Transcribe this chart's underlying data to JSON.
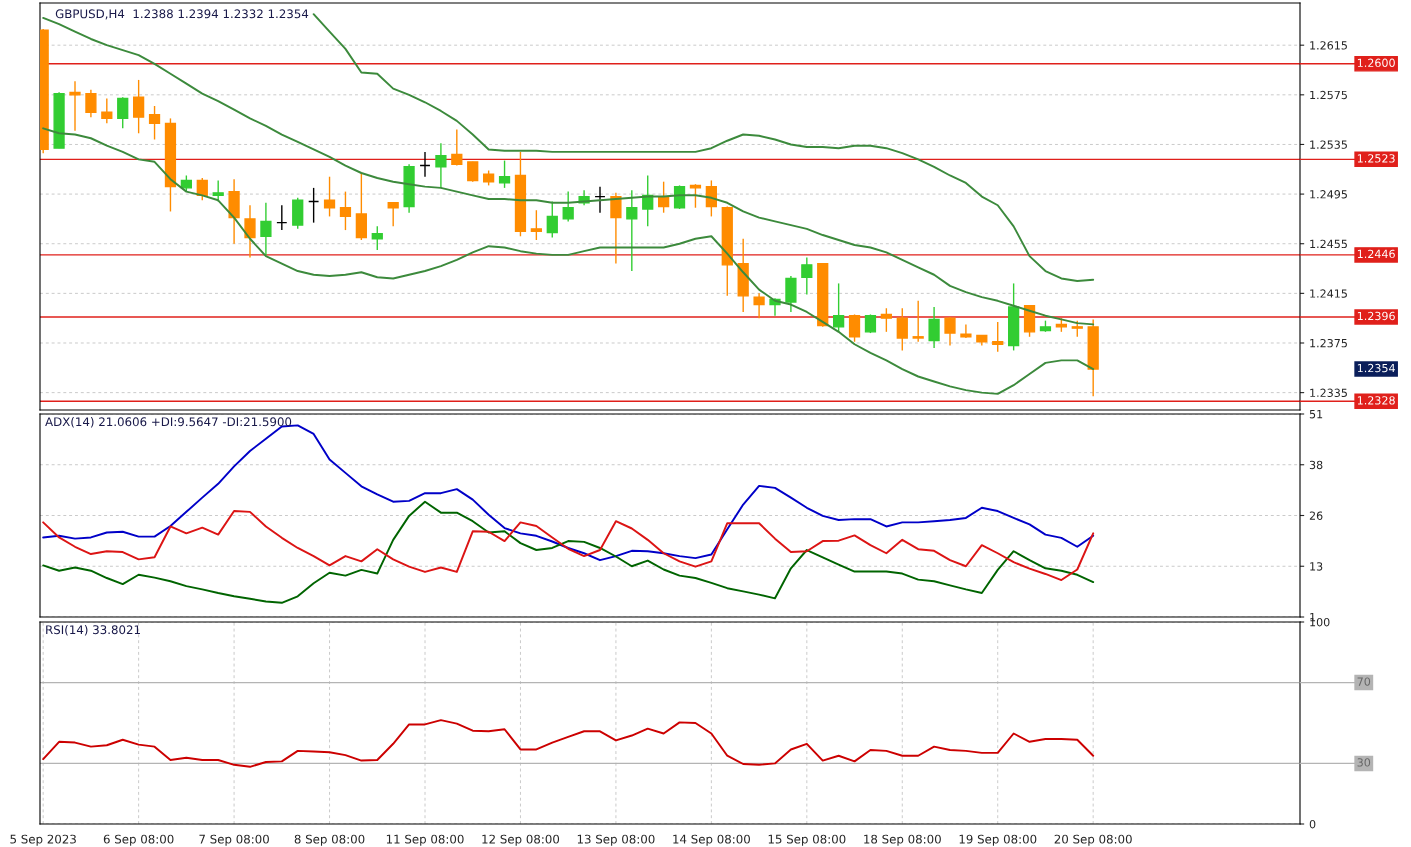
{
  "chart_data": [
    {
      "type": "candlestick",
      "title": "GBPUSD,H4  1.2388 1.2394 1.2332 1.2354",
      "categories": [
        null,
        null,
        null,
        null,
        null,
        null,
        null,
        null,
        null,
        null,
        null,
        null,
        null,
        null,
        null,
        null,
        null,
        null,
        null,
        null,
        null,
        null,
        null,
        null,
        null,
        null,
        null,
        null,
        null,
        null,
        null,
        null,
        null,
        null,
        null,
        null,
        null,
        null,
        null,
        null,
        null,
        null,
        null,
        null,
        null,
        null,
        null,
        null,
        null,
        null,
        null,
        null,
        null,
        null,
        null,
        null,
        null,
        null,
        null,
        null,
        null,
        null,
        null,
        null,
        null,
        null,
        null
      ],
      "ohlc": [
        [
          1.2627,
          1.2628,
          1.2528,
          1.2531
        ],
        [
          1.2532,
          1.2577,
          1.2532,
          1.2576
        ],
        [
          1.2577,
          1.2586,
          1.2546,
          1.2575
        ],
        [
          1.2576,
          1.2579,
          1.2557,
          1.2561
        ],
        [
          1.2561,
          1.2572,
          1.2552,
          1.2556
        ],
        [
          1.2556,
          1.2573,
          1.2548,
          1.2572
        ],
        [
          1.2573,
          1.2587,
          1.2544,
          1.2557
        ],
        [
          1.2559,
          1.2566,
          1.2539,
          1.2552
        ],
        [
          1.2552,
          1.2556,
          1.2481,
          1.2501
        ],
        [
          1.25,
          1.251,
          1.2497,
          1.2506
        ],
        [
          1.2506,
          1.2508,
          1.249,
          1.2494
        ],
        [
          1.2494,
          1.2506,
          1.2489,
          1.2496
        ],
        [
          1.2497,
          1.2507,
          1.2455,
          1.2476
        ],
        [
          1.2475,
          1.2486,
          1.2444,
          1.246
        ],
        [
          1.2461,
          1.2488,
          1.2446,
          1.2473
        ],
        [
          1.2472,
          1.2486,
          1.2466,
          1.2472
        ],
        [
          1.247,
          1.2492,
          1.2467,
          1.249
        ],
        [
          1.2489,
          1.25,
          1.2472,
          1.2489
        ],
        [
          1.249,
          1.2509,
          1.2477,
          1.2484
        ],
        [
          1.2484,
          1.2497,
          1.2466,
          1.2477
        ],
        [
          1.2479,
          1.2512,
          1.2458,
          1.246
        ],
        [
          1.2459,
          1.2469,
          1.245,
          1.2463
        ],
        [
          1.2488,
          1.2488,
          1.2469,
          1.2484
        ],
        [
          1.2485,
          1.2519,
          1.248,
          1.2517
        ],
        [
          1.2518,
          1.2529,
          1.2509,
          1.2518
        ],
        [
          1.2517,
          1.2536,
          1.25,
          1.2526
        ],
        [
          1.2527,
          1.2547,
          1.2518,
          1.2519
        ],
        [
          1.2521,
          1.2521,
          1.2505,
          1.2506
        ],
        [
          1.2511,
          1.2514,
          1.2502,
          1.2505
        ],
        [
          1.2504,
          1.2522,
          1.25,
          1.2509
        ],
        [
          1.251,
          1.2529,
          1.2461,
          1.2465
        ],
        [
          1.2467,
          1.2482,
          1.2458,
          1.2465
        ],
        [
          1.2464,
          1.2489,
          1.246,
          1.2477
        ],
        [
          1.2475,
          1.2497,
          1.2473,
          1.2484
        ],
        [
          1.2488,
          1.2498,
          1.2486,
          1.2493
        ],
        [
          1.2493,
          1.2501,
          1.248,
          1.2493
        ],
        [
          1.2493,
          1.2496,
          1.2439,
          1.2476
        ],
        [
          1.2475,
          1.2498,
          1.2433,
          1.2484
        ],
        [
          1.2483,
          1.251,
          1.2469,
          1.2494
        ],
        [
          1.2493,
          1.2505,
          1.248,
          1.2485
        ],
        [
          1.2484,
          1.2502,
          1.2483,
          1.2501
        ],
        [
          1.2502,
          1.2503,
          1.2484,
          1.25
        ],
        [
          1.2501,
          1.2506,
          1.2477,
          1.2485
        ],
        [
          1.2484,
          1.2485,
          1.2413,
          1.2438
        ],
        [
          1.2439,
          1.2459,
          1.24,
          1.2413
        ],
        [
          1.2412,
          1.2415,
          1.2395,
          1.2406
        ],
        [
          1.2406,
          1.2411,
          1.2397,
          1.241
        ],
        [
          1.2408,
          1.2429,
          1.24,
          1.2427
        ],
        [
          1.2428,
          1.2444,
          1.2414,
          1.2438
        ],
        [
          1.2439,
          1.2439,
          1.2388,
          1.2389
        ],
        [
          1.2388,
          1.2423,
          1.2384,
          1.2397
        ],
        [
          1.2397,
          1.2398,
          1.2376,
          1.238
        ],
        [
          1.2384,
          1.2398,
          1.2383,
          1.2397
        ],
        [
          1.2398,
          1.2403,
          1.2384,
          1.2395
        ],
        [
          1.2395,
          1.2403,
          1.2369,
          1.2379
        ],
        [
          1.238,
          1.2409,
          1.2376,
          1.2379
        ],
        [
          1.2377,
          1.2404,
          1.2371,
          1.2394
        ],
        [
          1.2395,
          1.2396,
          1.2373,
          1.2383
        ],
        [
          1.2382,
          1.239,
          1.2379,
          1.238
        ],
        [
          1.2381,
          1.2381,
          1.2373,
          1.2376
        ],
        [
          1.2376,
          1.2392,
          1.2368,
          1.2374
        ],
        [
          1.2373,
          1.2423,
          1.2369,
          1.2404
        ],
        [
          1.2405,
          1.2405,
          1.238,
          1.2384
        ],
        [
          1.2385,
          1.2393,
          1.2384,
          1.2388
        ],
        [
          1.239,
          1.2395,
          1.2384,
          1.2388
        ],
        [
          1.2388,
          1.2393,
          1.238,
          1.2387
        ],
        [
          1.2388,
          1.2394,
          1.2332,
          1.2354
        ]
      ],
      "colors": [
        "#ff8c00",
        "#32cd32",
        "#ff8c00",
        "#ff8c00",
        "#ff8c00",
        "#32cd32",
        "#ff8c00",
        "#ff8c00",
        "#ff8c00",
        "#32cd32",
        "#ff8c00",
        "#32cd32",
        "#ff8c00",
        "#ff8c00",
        "#32cd32",
        "#000000",
        "#32cd32",
        "#000000",
        "#ff8c00",
        "#ff8c00",
        "#ff8c00",
        "#32cd32",
        "#ff8c00",
        "#32cd32",
        "#000000",
        "#32cd32",
        "#ff8c00",
        "#ff8c00",
        "#ff8c00",
        "#32cd32",
        "#ff8c00",
        "#ff8c00",
        "#32cd32",
        "#32cd32",
        "#32cd32",
        "#000000",
        "#ff8c00",
        "#32cd32",
        "#32cd32",
        "#ff8c00",
        "#32cd32",
        "#ff8c00",
        "#ff8c00",
        "#ff8c00",
        "#ff8c00",
        "#ff8c00",
        "#32cd32",
        "#32cd32",
        "#32cd32",
        "#ff8c00",
        "#32cd32",
        "#ff8c00",
        "#32cd32",
        "#ff8c00",
        "#ff8c00",
        "#ff8c00",
        "#32cd32",
        "#ff8c00",
        "#ff8c00",
        "#ff8c00",
        "#ff8c00",
        "#32cd32",
        "#ff8c00",
        "#32cd32",
        "#ff8c00",
        "#ff8c00",
        "#ff8c00"
      ],
      "series": [
        {
          "type": "line",
          "color": "#3c8a3c",
          "values": [
            null,
            null,
            null,
            null,
            null,
            null,
            null,
            null,
            null,
            null,
            null,
            null,
            null,
            null,
            null,
            null,
            null,
            1.264,
            1.2626,
            1.2612,
            1.2593,
            1.2592,
            1.258,
            1.2575,
            1.2569,
            1.2562,
            1.2554,
            1.2543,
            1.2531,
            1.253,
            1.253,
            1.253,
            1.2529,
            1.2529,
            1.2529,
            1.2529,
            1.2529,
            1.2529,
            1.2529,
            1.2529,
            1.2529,
            1.2529,
            1.2532,
            1.2538,
            1.2543,
            1.2542,
            1.2539,
            1.2535,
            1.2533,
            1.2533,
            1.2532,
            1.2534,
            1.2534,
            1.2532,
            1.2528,
            1.2523,
            1.2517,
            1.251,
            1.2504,
            1.2493,
            1.2486,
            1.2469,
            1.2445,
            1.2433,
            1.2427,
            1.2425,
            1.2426
          ]
        },
        {
          "type": "line",
          "color": "#3c8a3c",
          "values": [
            1.2637,
            1.2632,
            1.2626,
            1.262,
            1.2615,
            1.2611,
            1.2607,
            1.26,
            1.2592,
            1.2584,
            1.2576,
            1.257,
            1.2563,
            1.2556,
            1.255,
            1.2543,
            1.2537,
            1.2531,
            1.2525,
            1.2518,
            1.2512,
            1.2508,
            1.2505,
            1.2503,
            1.2501,
            1.25,
            1.2497,
            1.2494,
            1.2491,
            1.2491,
            1.249,
            1.249,
            1.2488,
            1.2488,
            1.2489,
            1.249,
            1.2491,
            1.2492,
            1.2493,
            1.2493,
            1.2494,
            1.2494,
            1.2492,
            1.2488,
            1.2481,
            1.2476,
            1.2473,
            1.247,
            1.2467,
            1.2462,
            1.2458,
            1.2454,
            1.2452,
            1.2448,
            1.2442,
            1.2436,
            1.243,
            1.2421,
            1.2416,
            1.2412,
            1.2409,
            1.2405,
            1.2401,
            1.2397,
            1.2394,
            1.2391,
            1.239
          ]
        },
        {
          "type": "line",
          "color": "#3c8a3c",
          "values": [
            1.2548,
            1.2544,
            1.2543,
            1.254,
            1.2534,
            1.2529,
            1.2523,
            1.2521,
            1.2507,
            1.2497,
            1.2494,
            1.249,
            1.2476,
            1.2459,
            1.2445,
            1.2439,
            1.2433,
            1.243,
            1.2429,
            1.243,
            1.2432,
            1.2428,
            1.2427,
            1.243,
            1.2433,
            1.2437,
            1.2442,
            1.2448,
            1.2453,
            1.2452,
            1.2449,
            1.2447,
            1.2446,
            1.2446,
            1.2449,
            1.2452,
            1.2452,
            1.2452,
            1.2452,
            1.2452,
            1.2455,
            1.2459,
            1.2461,
            1.2447,
            1.2432,
            1.2418,
            1.2409,
            1.2406,
            1.24,
            1.2392,
            1.2384,
            1.2374,
            1.2367,
            1.2361,
            1.2354,
            1.2348,
            1.2344,
            1.234,
            1.2337,
            1.2335,
            1.2334,
            1.2341,
            1.235,
            1.2359,
            1.2361,
            1.2361,
            1.2354
          ]
        }
      ],
      "ylim": [
        1.2321,
        1.2649
      ],
      "yticks": [
        1.2335,
        1.2375,
        1.2415,
        1.2455,
        1.2495,
        1.2535,
        1.2575,
        1.2615
      ],
      "grid": true,
      "tick_labels": "y",
      "ref_lines": [
        {
          "axis": "y",
          "value": 1.26,
          "label": "1.2600",
          "color": "#e0201b"
        },
        {
          "axis": "y",
          "value": 1.2523,
          "label": "1.2523",
          "color": "#e0201b"
        },
        {
          "axis": "y",
          "value": 1.2446,
          "label": "1.2446",
          "color": "#e0201b"
        },
        {
          "axis": "y",
          "value": 1.2396,
          "label": "1.2396",
          "color": "#e0201b"
        },
        {
          "axis": "y",
          "value": 1.2328,
          "label": "1.2328",
          "color": "#e0201b"
        }
      ],
      "annotations": [
        "1.2354"
      ]
    },
    {
      "type": "line",
      "title": "ADX(14) 21.0606 +DI:9.5647 -DI:21.5900",
      "categories": [
        null,
        null,
        null,
        null,
        null,
        null,
        null,
        null,
        null,
        null,
        null,
        null,
        null,
        null,
        null,
        null,
        null,
        null,
        null,
        null,
        null,
        null,
        null,
        null,
        null,
        null,
        null,
        null,
        null,
        null,
        null,
        null,
        null,
        null,
        null,
        null,
        null,
        null,
        null,
        null,
        null,
        null,
        null,
        null,
        null,
        null,
        null,
        null,
        null,
        null,
        null,
        null,
        null,
        null,
        null,
        null,
        null,
        null,
        null,
        null,
        null,
        null,
        null,
        null,
        null,
        null,
        null
      ],
      "series": [
        {
          "color": "#0000c8",
          "values": [
            20.6,
            21.0,
            20.3,
            20.6,
            21.8,
            22.0,
            20.8,
            20.8,
            23.4,
            26.9,
            30.4,
            33.8,
            38.1,
            41.9,
            44.9,
            47.9,
            48.2,
            46.1,
            39.8,
            36.5,
            33.2,
            31.2,
            29.4,
            29.6,
            31.5,
            31.5,
            32.5,
            29.9,
            26.2,
            22.9,
            21.6,
            21.0,
            19.6,
            18.0,
            16.7,
            15.0,
            16.0,
            17.3,
            17.2,
            16.7,
            16.0,
            15.5,
            16.4,
            22.6,
            28.7,
            33.3,
            32.8,
            30.4,
            27.9,
            25.9,
            24.9,
            25.1,
            25.1,
            23.3,
            24.3,
            24.3,
            24.6,
            24.9,
            25.4,
            27.9,
            27.1,
            25.4,
            23.8,
            21.3,
            20.5,
            18.3,
            21.0
          ]
        },
        {
          "color": "#006400",
          "values": [
            13.7,
            12.4,
            13.2,
            12.4,
            10.6,
            9.1,
            11.4,
            10.7,
            9.8,
            8.6,
            7.8,
            6.9,
            6.1,
            5.5,
            4.8,
            4.5,
            6.1,
            9.3,
            11.9,
            11.2,
            12.6,
            11.7,
            20.0,
            25.9,
            29.4,
            26.7,
            26.7,
            24.6,
            21.8,
            22.1,
            19.2,
            17.5,
            18.0,
            19.7,
            19.5,
            18.0,
            15.9,
            13.5,
            14.9,
            12.7,
            11.2,
            10.6,
            9.4,
            8.1,
            7.3,
            6.5,
            5.6,
            13.0,
            17.5,
            15.7,
            13.9,
            12.2,
            12.2,
            12.2,
            11.7,
            10.2,
            9.8,
            8.8,
            7.8,
            6.9,
            12.6,
            17.2,
            15.0,
            13.0,
            12.4,
            11.4,
            9.6
          ]
        },
        {
          "color": "#dc1414",
          "values": [
            24.3,
            20.6,
            18.3,
            16.5,
            17.2,
            17.0,
            15.2,
            15.7,
            23.3,
            21.6,
            23.0,
            21.3,
            27.1,
            26.9,
            23.3,
            20.5,
            18.0,
            16.0,
            13.7,
            16.0,
            14.7,
            17.7,
            15.2,
            13.4,
            12.1,
            13.2,
            12.1,
            22.1,
            22.0,
            19.7,
            24.3,
            23.4,
            20.6,
            17.8,
            16.0,
            17.5,
            24.6,
            22.8,
            20.0,
            16.7,
            14.7,
            13.4,
            14.7,
            24.1,
            24.1,
            24.1,
            20.3,
            17.0,
            17.2,
            19.7,
            19.8,
            21.1,
            18.7,
            16.7,
            20.0,
            17.7,
            17.3,
            15.0,
            13.5,
            18.7,
            16.7,
            14.5,
            12.9,
            11.6,
            10.1,
            12.7,
            21.6
          ]
        }
      ],
      "ylim": [
        1,
        51
      ],
      "yticks": [
        1,
        {
          "value": 13.5,
          "label": "13"
        },
        26,
        {
          "value": 38.5,
          "label": "38"
        },
        51
      ],
      "grid": true,
      "tick_labels": "y"
    },
    {
      "type": "line",
      "title": "RSI(14) 33.8021",
      "categories": [
        "5 Sep 2023",
        null,
        null,
        null,
        null,
        null,
        "6 Sep 08:00",
        null,
        null,
        null,
        null,
        null,
        "7 Sep 08:00",
        null,
        null,
        null,
        null,
        null,
        "8 Sep 08:00",
        null,
        null,
        null,
        null,
        null,
        "11 Sep 08:00",
        null,
        null,
        null,
        null,
        null,
        "12 Sep 08:00",
        null,
        null,
        null,
        null,
        null,
        "13 Sep 08:00",
        null,
        null,
        null,
        null,
        null,
        "14 Sep 08:00",
        null,
        null,
        null,
        null,
        null,
        "15 Sep 08:00",
        null,
        null,
        null,
        null,
        null,
        "18 Sep 08:00",
        null,
        null,
        null,
        null,
        null,
        "19 Sep 08:00",
        null,
        null,
        null,
        null,
        null,
        "20 Sep 08:00"
      ],
      "series": [
        {
          "color": "#cc0000",
          "values": [
            32.1,
            40.7,
            40.3,
            38.3,
            39.0,
            41.7,
            39.3,
            38.3,
            31.7,
            32.8,
            31.7,
            31.7,
            29.3,
            28.3,
            30.7,
            31.0,
            36.2,
            35.9,
            35.5,
            34.1,
            31.4,
            31.7,
            39.7,
            49.3,
            49.3,
            51.4,
            49.7,
            46.2,
            45.9,
            46.9,
            36.9,
            36.9,
            40.3,
            43.1,
            45.9,
            45.9,
            41.4,
            43.8,
            47.2,
            44.8,
            50.3,
            50.0,
            44.8,
            33.8,
            29.7,
            29.3,
            30.0,
            36.9,
            39.7,
            31.4,
            33.8,
            31.0,
            36.6,
            36.2,
            33.8,
            33.8,
            38.3,
            36.6,
            36.2,
            35.2,
            35.2,
            44.8,
            40.7,
            42.1,
            42.1,
            41.7,
            33.8
          ]
        }
      ],
      "ylim": [
        0,
        100
      ],
      "yticks": [
        0,
        100
      ],
      "grid": true,
      "ref_lines": [
        {
          "axis": "y",
          "value": 70,
          "label": "70",
          "color": "#b4b4b4"
        },
        {
          "axis": "y",
          "value": 30,
          "label": "30",
          "color": "#b4b4b4"
        }
      ]
    }
  ]
}
